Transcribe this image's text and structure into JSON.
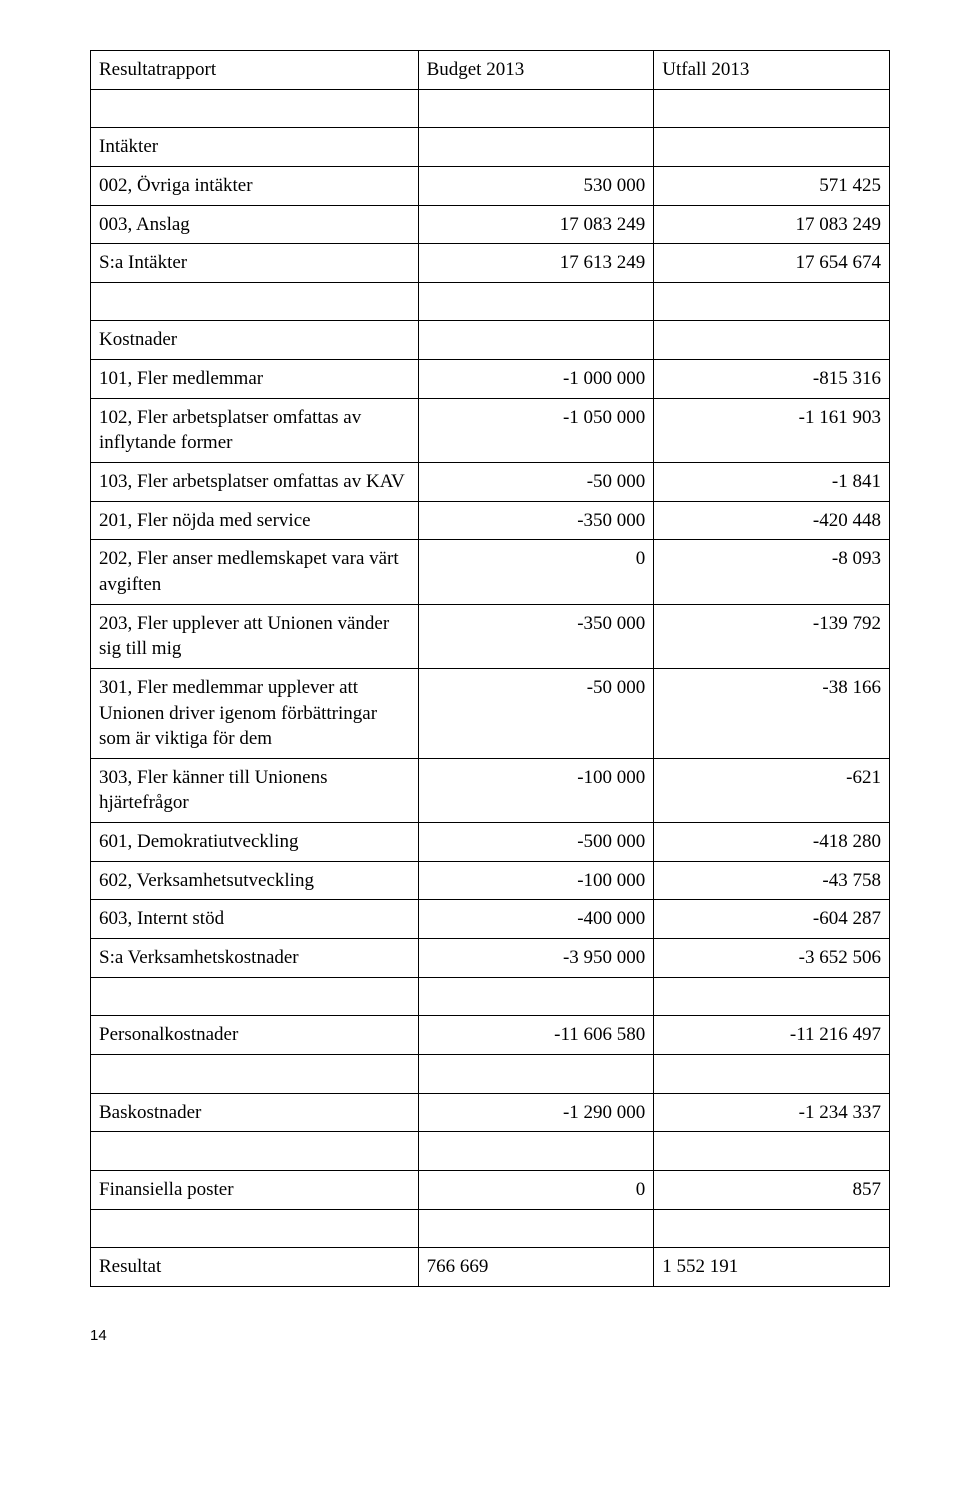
{
  "table": {
    "font_family": "Georgia, 'Times New Roman', serif",
    "font_size": 19,
    "border_color": "#000000",
    "background_color": "#ffffff",
    "text_color": "#000000",
    "headers": {
      "col1": "Resultatrapport",
      "col2": "Budget 2013",
      "col3": "Utfall 2013"
    },
    "sections": [
      {
        "title": "Intäkter",
        "rows": [
          {
            "label": "002, Övriga intäkter",
            "budget": "530 000",
            "utfall": "571 425"
          },
          {
            "label": "003, Anslag",
            "budget": "17 083 249",
            "utfall": "17 083 249"
          },
          {
            "label": "S:a Intäkter",
            "budget": "17 613 249",
            "utfall": "17 654 674"
          }
        ]
      },
      {
        "title": "Kostnader",
        "rows": [
          {
            "label": "101, Fler medlemmar",
            "budget": "-1 000 000",
            "utfall": "-815 316"
          },
          {
            "label": "102, Fler arbetsplatser omfattas av inflytande former",
            "budget": "-1 050 000",
            "utfall": "-1 161 903"
          },
          {
            "label": "103, Fler arbetsplatser omfattas av KAV",
            "budget": "-50 000",
            "utfall": "-1 841"
          },
          {
            "label": "201, Fler nöjda med service",
            "budget": "-350 000",
            "utfall": "-420 448"
          },
          {
            "label": "202, Fler anser medlemskapet vara värt avgiften",
            "budget": "0",
            "utfall": "-8 093"
          },
          {
            "label": "203, Fler upplever att Unionen vänder sig till mig",
            "budget": "-350 000",
            "utfall": "-139 792"
          },
          {
            "label": "301, Fler medlemmar upplever att Unionen driver igenom förbättringar som är viktiga för dem",
            "budget": "-50 000",
            "utfall": "-38 166"
          },
          {
            "label": "303, Fler känner till Unionens hjärtefrågor",
            "budget": "-100 000",
            "utfall": "-621"
          },
          {
            "label": "601, Demokratiutveckling",
            "budget": "-500 000",
            "utfall": "-418 280"
          },
          {
            "label": "602, Verksamhetsutveckling",
            "budget": "-100 000",
            "utfall": "-43 758"
          },
          {
            "label": "603, Internt stöd",
            "budget": "-400 000",
            "utfall": "-604 287"
          },
          {
            "label": "S:a Verksamhetskostnader",
            "budget": "-3 950 000",
            "utfall": "-3 652 506"
          }
        ]
      }
    ],
    "footer_rows": [
      {
        "label": "Personalkostnader",
        "budget": "-11 606 580",
        "utfall": "-11 216 497"
      },
      {
        "label": "Baskostnader",
        "budget": "-1 290 000",
        "utfall": "-1 234 337"
      },
      {
        "label": "Finansiella poster",
        "budget": "0",
        "utfall": "857"
      },
      {
        "label": "Resultat",
        "budget": "766 669",
        "utfall": "1 552 191",
        "left_align_values": true
      }
    ]
  },
  "page_number": "14"
}
